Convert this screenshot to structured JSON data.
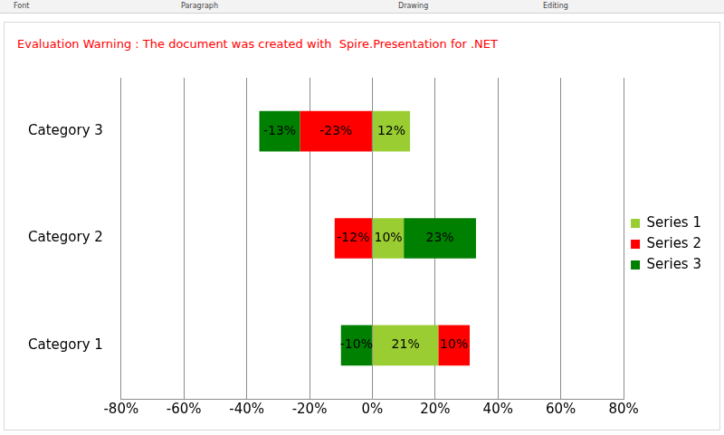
{
  "ribbon_groups": [
    "Font",
    "Paragraph",
    "Drawing",
    "Editing"
  ],
  "chart_data": {
    "type": "bar",
    "orientation": "horizontal",
    "stacked": true,
    "annotations": [
      "Evaluation Warning : The document was created with  Spire.Presentation for .NET"
    ],
    "categories": [
      "Category 1",
      "Category 2",
      "Category 3"
    ],
    "series": [
      {
        "name": "Series 1",
        "color": "#9acd32",
        "values": [
          21,
          10,
          12
        ],
        "value_labels": [
          "21%",
          "10%",
          "12%"
        ]
      },
      {
        "name": "Series 2",
        "color": "#ff0000",
        "values": [
          10,
          -12,
          -23
        ],
        "value_labels": [
          "10%",
          "-12%",
          "-23%"
        ]
      },
      {
        "name": "Series 3",
        "color": "#008000",
        "values": [
          -10,
          23,
          -13
        ],
        "value_labels": [
          "-10%",
          "23%",
          "-13%"
        ]
      }
    ],
    "xlim": [
      -80,
      80
    ],
    "xticks": [
      {
        "value": -80,
        "label": "-80%"
      },
      {
        "value": -60,
        "label": "-60%"
      },
      {
        "value": -40,
        "label": "-40%"
      },
      {
        "value": -20,
        "label": "-20%"
      },
      {
        "value": 0,
        "label": "0%"
      },
      {
        "value": 20,
        "label": "20%"
      },
      {
        "value": 40,
        "label": "40%"
      },
      {
        "value": 60,
        "label": "60%"
      },
      {
        "value": 80,
        "label": "80%"
      }
    ],
    "grid": true,
    "legend": "right",
    "data_labels": true
  }
}
